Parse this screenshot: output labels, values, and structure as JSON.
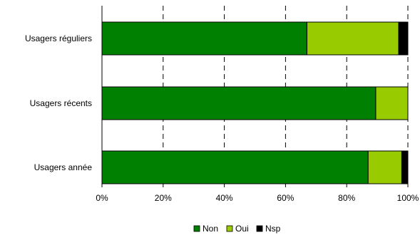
{
  "chart_data": {
    "type": "bar",
    "orientation": "horizontal",
    "stacked": true,
    "percent_axis": true,
    "categories": [
      "Usagers réguliers",
      "Usagers récents",
      "Usagers année"
    ],
    "series": [
      {
        "name": "Non",
        "color": "#008000",
        "values": [
          67,
          89.5,
          87
        ]
      },
      {
        "name": "Oui",
        "color": "#99cc00",
        "values": [
          30,
          10.5,
          11
        ]
      },
      {
        "name": "Nsp",
        "color": "#000000",
        "values": [
          3,
          0,
          2
        ]
      }
    ],
    "xlim": [
      0,
      100
    ],
    "xticks": [
      "0%",
      "20%",
      "40%",
      "60%",
      "80%",
      "100%"
    ],
    "grid": "vertical dashed",
    "legend_position": "bottom"
  }
}
